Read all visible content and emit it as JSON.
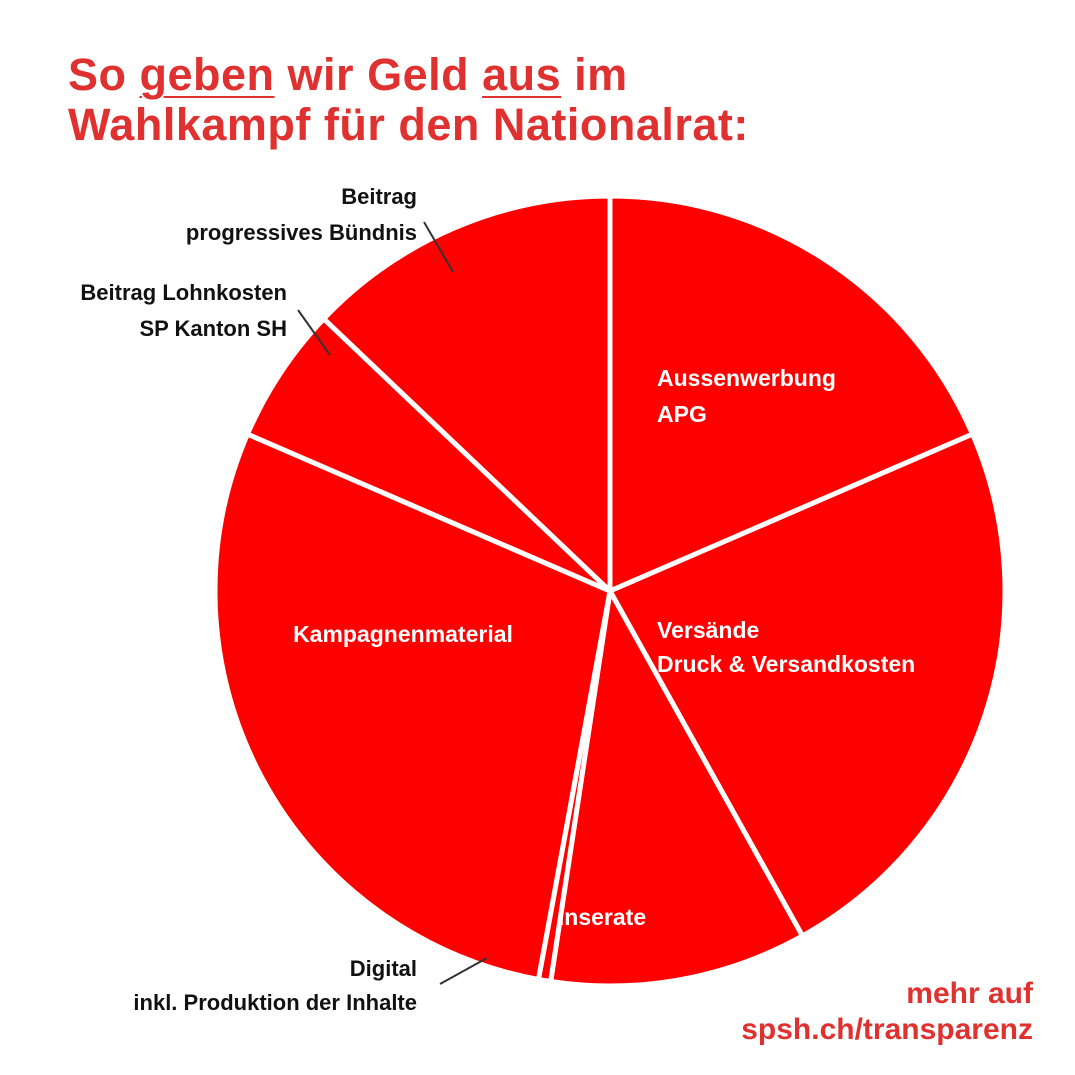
{
  "title": {
    "w1": "So ",
    "w2": "geben",
    "w3": " wir Geld ",
    "w4": "aus",
    "w5": " im",
    "line2": "Wahlkampf für den Nationalrat:"
  },
  "footer": {
    "line1": "mehr auf",
    "line2": "spsh.ch/transparenz"
  },
  "colors": {
    "accent": "#e03131",
    "slice": "#ff0000",
    "inside_label": "#ffffff",
    "outside_label": "#111111"
  },
  "chart_data": {
    "type": "pie",
    "title": "",
    "start": "12 o'clock, clockwise",
    "slices": [
      {
        "label": [
          "Aussenwerbung",
          "APG"
        ],
        "value": 18.5,
        "label_position": "inside"
      },
      {
        "label": [
          "Versände",
          "Druck & Versandkosten"
        ],
        "value": 23.4,
        "label_position": "inside"
      },
      {
        "label": [
          "Inserate"
        ],
        "value": 10.5,
        "label_position": "inside"
      },
      {
        "label": [
          "Digital",
          "inkl. Produktion der Inhalte"
        ],
        "value": 0.5,
        "label_position": "outside"
      },
      {
        "label": [
          "Kampagnenmaterial"
        ],
        "value": 28.6,
        "label_position": "inside"
      },
      {
        "label": [
          "Beitrag Lohnkosten",
          "SP Kanton SH"
        ],
        "value": 5.6,
        "label_position": "outside"
      },
      {
        "label": [
          "Beitrag",
          "progressives Bündnis"
        ],
        "value": 12.9,
        "label_position": "outside"
      }
    ]
  }
}
